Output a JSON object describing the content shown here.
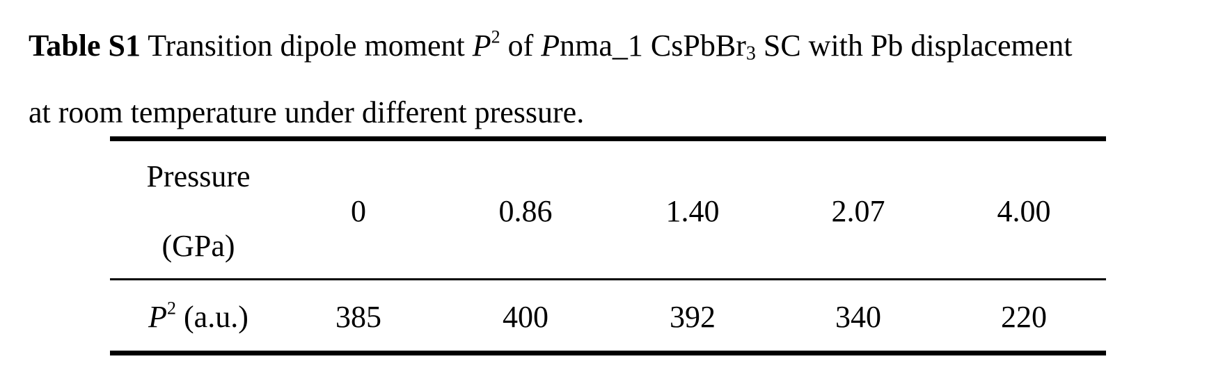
{
  "caption": {
    "label": "Table S1",
    "text_part1": " Transition dipole moment ",
    "symbol_P": "P",
    "symbol_exp": "2",
    "text_part2": " of ",
    "space_group_italic": "P",
    "space_group_rest": "nma_1 CsPbBr",
    "formula_sub": "3",
    "text_part3": " SC with Pb displacement",
    "line2": "at room temperature under different pressure."
  },
  "table": {
    "header_label_line1": "Pressure",
    "header_label_line2": "(GPa)",
    "pressures": [
      "0",
      "0.86",
      "1.40",
      "2.07",
      "4.00"
    ],
    "row_label_symbol": "P",
    "row_label_exp": "2",
    "row_label_unit": " (a.u.)",
    "values": [
      "385",
      "400",
      "392",
      "340",
      "220"
    ]
  }
}
